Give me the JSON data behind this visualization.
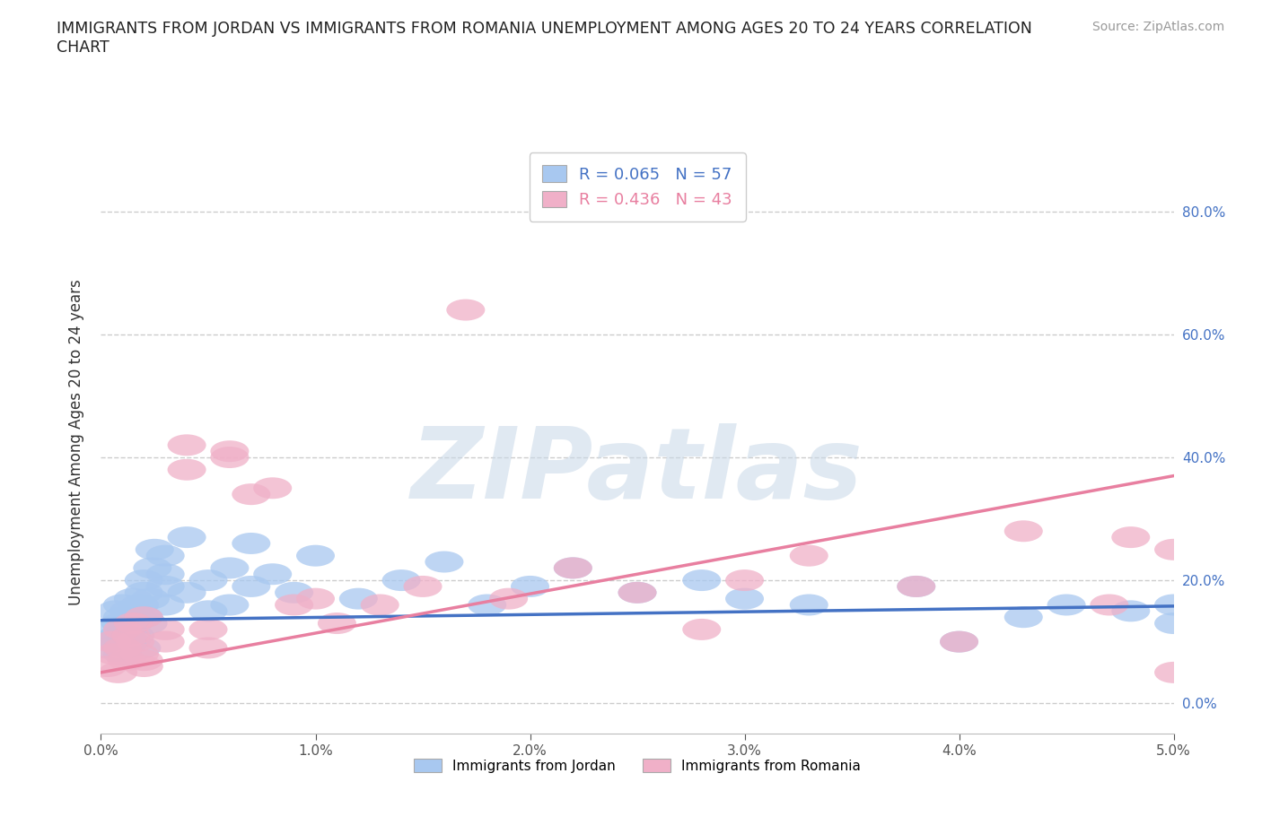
{
  "title": "IMMIGRANTS FROM JORDAN VS IMMIGRANTS FROM ROMANIA UNEMPLOYMENT AMONG AGES 20 TO 24 YEARS CORRELATION\nCHART",
  "source_text": "Source: ZipAtlas.com",
  "ylabel": "Unemployment Among Ages 20 to 24 years",
  "xlim": [
    0.0,
    0.05
  ],
  "ylim": [
    -0.05,
    0.9
  ],
  "xticks": [
    0.0,
    0.01,
    0.02,
    0.03,
    0.04,
    0.05
  ],
  "xticklabels": [
    "0.0%",
    "1.0%",
    "2.0%",
    "3.0%",
    "4.0%",
    "5.0%"
  ],
  "yticks": [
    0.0,
    0.2,
    0.4,
    0.6,
    0.8
  ],
  "yticklabels": [
    "0.0%",
    "20.0%",
    "40.0%",
    "60.0%",
    "80.0%"
  ],
  "jordan_color": "#a8c8f0",
  "romania_color": "#f0b0c8",
  "jordan_R": 0.065,
  "jordan_N": 57,
  "romania_R": 0.436,
  "romania_N": 43,
  "jordan_line_color": "#4472c4",
  "romania_line_color": "#e87fa0",
  "jordan_line_y0": 0.135,
  "jordan_line_y1": 0.158,
  "romania_line_y0": 0.05,
  "romania_line_y1": 0.37,
  "watermark": "ZIPatlas",
  "background_color": "#ffffff",
  "grid_color": "#cccccc",
  "jordan_scatter_x": [
    0.0003,
    0.0005,
    0.0006,
    0.0007,
    0.0008,
    0.0009,
    0.001,
    0.001,
    0.001,
    0.0012,
    0.0013,
    0.0014,
    0.0015,
    0.0015,
    0.0016,
    0.0017,
    0.0018,
    0.0019,
    0.002,
    0.002,
    0.002,
    0.0022,
    0.0023,
    0.0024,
    0.0025,
    0.003,
    0.003,
    0.003,
    0.003,
    0.004,
    0.004,
    0.005,
    0.005,
    0.006,
    0.006,
    0.007,
    0.007,
    0.008,
    0.009,
    0.01,
    0.012,
    0.014,
    0.016,
    0.018,
    0.02,
    0.022,
    0.025,
    0.028,
    0.03,
    0.033,
    0.038,
    0.04,
    0.043,
    0.045,
    0.048,
    0.05,
    0.05
  ],
  "jordan_scatter_y": [
    0.09,
    0.12,
    0.1,
    0.15,
    0.11,
    0.13,
    0.14,
    0.08,
    0.16,
    0.12,
    0.15,
    0.1,
    0.13,
    0.17,
    0.11,
    0.14,
    0.16,
    0.09,
    0.18,
    0.2,
    0.14,
    0.13,
    0.17,
    0.22,
    0.25,
    0.19,
    0.21,
    0.16,
    0.24,
    0.18,
    0.27,
    0.2,
    0.15,
    0.16,
    0.22,
    0.26,
    0.19,
    0.21,
    0.18,
    0.24,
    0.17,
    0.2,
    0.23,
    0.16,
    0.19,
    0.22,
    0.18,
    0.2,
    0.17,
    0.16,
    0.19,
    0.1,
    0.14,
    0.16,
    0.15,
    0.13,
    0.16
  ],
  "romania_scatter_x": [
    0.0003,
    0.0005,
    0.0006,
    0.0008,
    0.001,
    0.001,
    0.0012,
    0.0014,
    0.0015,
    0.0016,
    0.0018,
    0.002,
    0.002,
    0.002,
    0.003,
    0.003,
    0.004,
    0.004,
    0.005,
    0.005,
    0.006,
    0.006,
    0.007,
    0.008,
    0.009,
    0.01,
    0.011,
    0.013,
    0.015,
    0.017,
    0.019,
    0.022,
    0.025,
    0.028,
    0.03,
    0.033,
    0.038,
    0.04,
    0.043,
    0.047,
    0.048,
    0.05,
    0.05
  ],
  "romania_scatter_y": [
    0.06,
    0.1,
    0.08,
    0.05,
    0.12,
    0.09,
    0.07,
    0.11,
    0.13,
    0.1,
    0.08,
    0.14,
    0.07,
    0.06,
    0.12,
    0.1,
    0.42,
    0.38,
    0.09,
    0.12,
    0.4,
    0.41,
    0.34,
    0.35,
    0.16,
    0.17,
    0.13,
    0.16,
    0.19,
    0.64,
    0.17,
    0.22,
    0.18,
    0.12,
    0.2,
    0.24,
    0.19,
    0.1,
    0.28,
    0.16,
    0.27,
    0.25,
    0.05
  ]
}
